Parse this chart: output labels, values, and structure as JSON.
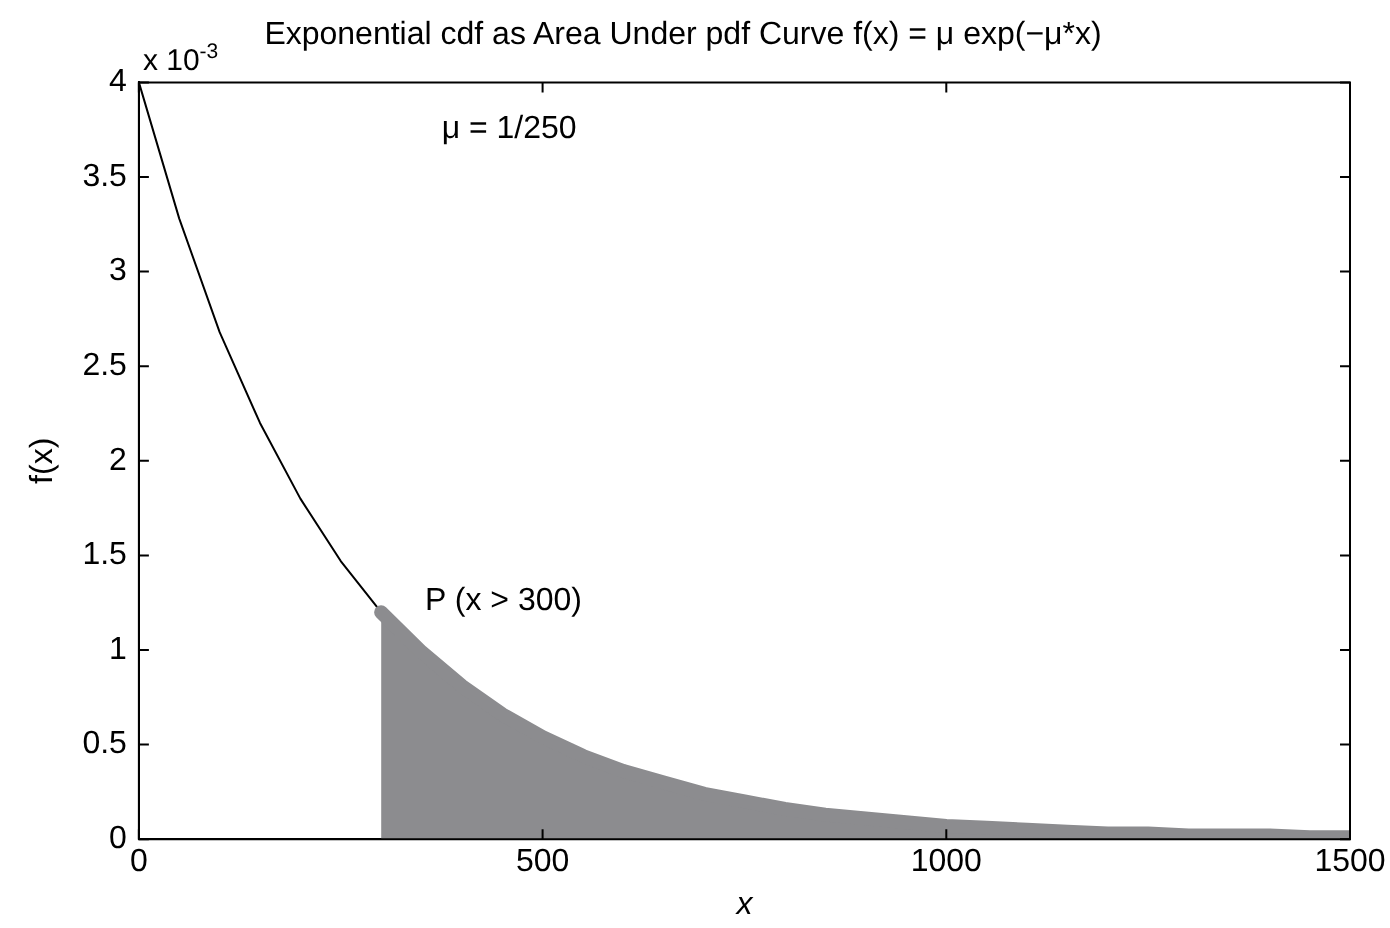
{
  "chart_data": {
    "type": "line",
    "title": "Exponential cdf as Area Under pdf Curve f(x) = μ exp(−μ*x)",
    "xlabel": "x",
    "ylabel": "f(x)",
    "xlim": [
      0,
      1500
    ],
    "xticks": [
      0,
      500,
      1000,
      1500
    ],
    "ylim": [
      0,
      4
    ],
    "yticks": [
      0,
      0.5,
      1,
      1.5,
      2,
      2.5,
      3,
      3.5,
      4
    ],
    "grid": false,
    "legend": false,
    "marker": "none",
    "line_style": "solid",
    "series": [
      {
        "type": "area",
        "color": "#8c8c8f",
        "x": [
          300,
          350,
          400,
          450,
          500,
          550,
          600,
          650,
          700,
          750,
          800,
          850,
          900,
          950,
          1000,
          1050,
          1100,
          1150,
          1200,
          1250,
          1300,
          1350,
          1400,
          1450,
          1500
        ],
        "values": [
          1.2,
          0.99,
          0.81,
          0.66,
          0.54,
          0.44,
          0.36,
          0.3,
          0.24,
          0.2,
          0.16,
          0.13,
          0.11,
          0.09,
          0.07,
          0.06,
          0.05,
          0.04,
          0.03,
          0.03,
          0.02,
          0.02,
          0.02,
          0.01,
          0.01
        ]
      },
      {
        "type": "line",
        "color": "#000000",
        "x": [
          0,
          50,
          100,
          150,
          200,
          250,
          300
        ],
        "values": [
          4,
          3.28,
          2.68,
          2.2,
          1.8,
          1.47,
          1.2
        ]
      }
    ],
    "annotations": [
      "x 10$^{-3}$",
      "μ = 1/250",
      {
        "text": "P (x > 300)",
        "x": 300,
        "y": 1.15
      }
    ]
  }
}
